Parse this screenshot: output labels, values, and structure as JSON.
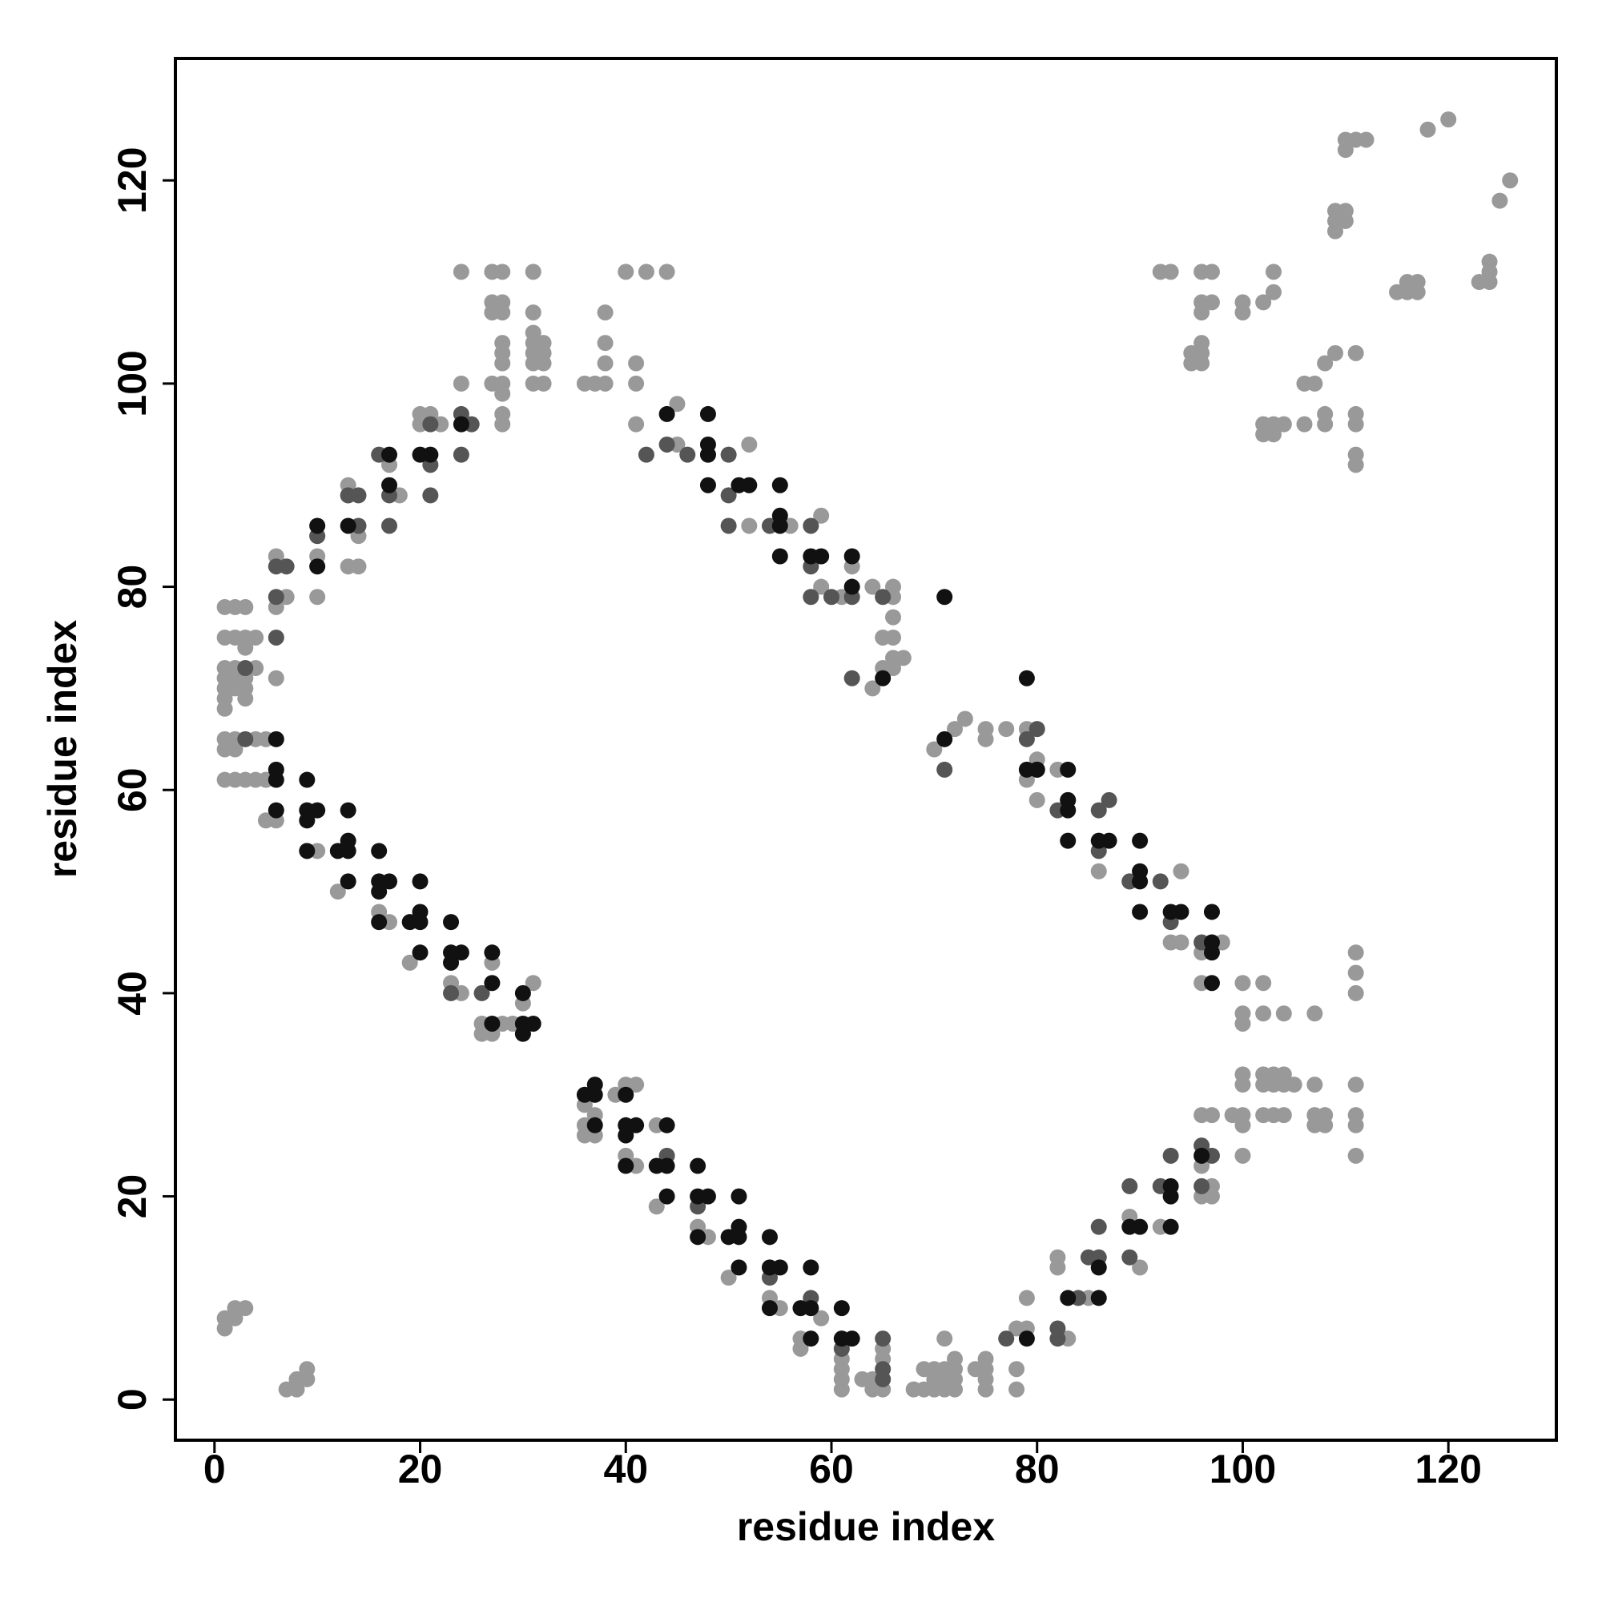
{
  "chart_data": {
    "type": "scatter",
    "xlabel": "residue index",
    "ylabel": "residue index",
    "xlim": [
      -3.8,
      130.5
    ],
    "ylim": [
      -4,
      132
    ],
    "xticks": [
      0,
      20,
      40,
      60,
      80,
      100,
      120
    ],
    "yticks": [
      0,
      20,
      40,
      60,
      80,
      100,
      120
    ],
    "series": [
      {
        "color": "#999999",
        "x": [
          1,
          2,
          3,
          1,
          2,
          3,
          4,
          1,
          1,
          1,
          1,
          1,
          2,
          2,
          2,
          3,
          3,
          3,
          4,
          3,
          1,
          2,
          4,
          5,
          1,
          2,
          1,
          2,
          3,
          4,
          5,
          6,
          6,
          7,
          6,
          5,
          6,
          10,
          10,
          10,
          13,
          13,
          13,
          14,
          14,
          17,
          18,
          20,
          20,
          21,
          22,
          24,
          24,
          27,
          28,
          27,
          28,
          27,
          28,
          27,
          28,
          28,
          28,
          28,
          28,
          28,
          28,
          31,
          31,
          31,
          31,
          31,
          31,
          31,
          32,
          32,
          32,
          32,
          36,
          37,
          38,
          38,
          38,
          38,
          40,
          42,
          44,
          41,
          41,
          41,
          45,
          45,
          48,
          52,
          52,
          56,
          59,
          59,
          61,
          62,
          64,
          66,
          66,
          66,
          65,
          66,
          66,
          67,
          65,
          66,
          64,
          70,
          72,
          73,
          75,
          75,
          77,
          79,
          79,
          80,
          80,
          82,
          86,
          89,
          93,
          94,
          94,
          96,
          98,
          96,
          10,
          12,
          16,
          17,
          19,
          23,
          24,
          27,
          26,
          26,
          27,
          29,
          30,
          30,
          31,
          28,
          36,
          36,
          36,
          37,
          37,
          39,
          40,
          41,
          40,
          41,
          43,
          43,
          47,
          48,
          50,
          54,
          55,
          57,
          57,
          59,
          61,
          61,
          61,
          61,
          63,
          64,
          64,
          65,
          65,
          65,
          65,
          68,
          69,
          69,
          70,
          70,
          70,
          71,
          71,
          71,
          71,
          72,
          72,
          72,
          72,
          74,
          75,
          75,
          75,
          75,
          78,
          78,
          78,
          79,
          79,
          82,
          82,
          83,
          85,
          89,
          90,
          92,
          96,
          97,
          96,
          97,
          97,
          96,
          100,
          100,
          100,
          100,
          100,
          100,
          99,
          100,
          100,
          102,
          102,
          102,
          102,
          102,
          103,
          103,
          103,
          104,
          104,
          104,
          104,
          105,
          107,
          107,
          107,
          107,
          108,
          108,
          111,
          111,
          111,
          111,
          111,
          111,
          111,
          1,
          1,
          2,
          2,
          3,
          7,
          8,
          8,
          9,
          9,
          92,
          93,
          96,
          97,
          96,
          97,
          96,
          96,
          95,
          95,
          96,
          96,
          100,
          100,
          102,
          103,
          103,
          102,
          102,
          103,
          103,
          104,
          106,
          107,
          106,
          108,
          108,
          108,
          109,
          109,
          109,
          109,
          110,
          110,
          111,
          111,
          111,
          111,
          111,
          110,
          110,
          111,
          112,
          115,
          116,
          116,
          117,
          117,
          118,
          120,
          123,
          124,
          124,
          124,
          125,
          126
        ],
        "values": [
          78,
          78,
          78,
          75,
          75,
          75,
          75,
          72,
          71,
          70,
          69,
          68,
          72,
          71,
          70,
          71,
          70,
          69,
          72,
          74,
          65,
          65,
          65,
          65,
          64,
          64,
          61,
          61,
          61,
          61,
          61,
          83,
          78,
          79,
          71,
          57,
          57,
          85,
          83,
          79,
          90,
          89,
          82,
          82,
          85,
          92,
          89,
          97,
          96,
          97,
          96,
          100,
          111,
          111,
          111,
          108,
          108,
          107,
          107,
          100,
          104,
          103,
          102,
          100,
          99,
          97,
          96,
          111,
          107,
          105,
          104,
          103,
          102,
          100,
          104,
          103,
          102,
          100,
          100,
          100,
          107,
          104,
          102,
          100,
          111,
          111,
          111,
          102,
          100,
          96,
          98,
          94,
          93,
          94,
          86,
          86,
          87,
          80,
          79,
          82,
          80,
          80,
          79,
          77,
          75,
          75,
          73,
          73,
          72,
          72,
          70,
          64,
          66,
          67,
          66,
          65,
          66,
          66,
          61,
          63,
          59,
          62,
          52,
          51,
          45,
          45,
          52,
          44,
          45,
          41,
          54,
          50,
          48,
          47,
          43,
          41,
          40,
          43,
          37,
          36,
          36,
          37,
          36,
          39,
          41,
          37,
          29,
          27,
          26,
          28,
          26,
          30,
          31,
          31,
          24,
          23,
          27,
          19,
          17,
          16,
          12,
          10,
          9,
          6,
          5,
          8,
          4,
          3,
          2,
          1,
          2,
          2,
          1,
          5,
          4,
          2,
          1,
          1,
          3,
          1,
          3,
          2,
          1,
          6,
          3,
          2,
          1,
          4,
          3,
          2,
          1,
          3,
          4,
          3,
          2,
          1,
          7,
          3,
          1,
          10,
          7,
          14,
          13,
          6,
          10,
          18,
          13,
          17,
          28,
          28,
          23,
          21,
          20,
          20,
          41,
          38,
          37,
          32,
          31,
          28,
          28,
          27,
          24,
          41,
          38,
          32,
          31,
          28,
          32,
          31,
          28,
          38,
          32,
          31,
          28,
          31,
          38,
          31,
          28,
          27,
          28,
          27,
          44,
          42,
          40,
          31,
          28,
          27,
          24,
          8,
          7,
          9,
          8,
          9,
          1,
          2,
          1,
          3,
          2,
          111,
          111,
          111,
          111,
          108,
          108,
          107,
          104,
          103,
          102,
          103,
          102,
          108,
          107,
          108,
          111,
          109,
          96,
          95,
          96,
          95,
          96,
          100,
          100,
          96,
          97,
          96,
          102,
          103,
          117,
          116,
          115,
          117,
          116,
          103,
          97,
          96,
          93,
          92,
          123,
          124,
          124,
          124,
          109,
          110,
          109,
          110,
          109,
          125,
          126,
          110,
          112,
          111,
          110,
          118,
          120
        ]
      },
      {
        "color": "#555555",
        "x": [
          3,
          6,
          6,
          6,
          7,
          10,
          13,
          14,
          14,
          16,
          17,
          17,
          21,
          21,
          21,
          24,
          24,
          25,
          42,
          44,
          46,
          50,
          50,
          50,
          54,
          58,
          58,
          58,
          60,
          62,
          62,
          65,
          79,
          80,
          80,
          82,
          83,
          86,
          86,
          87,
          89,
          92,
          93,
          96,
          71,
          3,
          23,
          26,
          44,
          47,
          54,
          58,
          61,
          65,
          65,
          65,
          77,
          82,
          82,
          84,
          85,
          86,
          86,
          89,
          89,
          92,
          93,
          96,
          96,
          97
        ],
        "values": [
          65,
          75,
          79,
          82,
          82,
          85,
          89,
          86,
          89,
          93,
          89,
          86,
          96,
          92,
          89,
          97,
          93,
          96,
          93,
          94,
          93,
          93,
          89,
          86,
          86,
          86,
          82,
          79,
          79,
          79,
          71,
          79,
          65,
          66,
          62,
          58,
          59,
          58,
          54,
          59,
          51,
          51,
          47,
          45,
          62,
          72,
          40,
          40,
          24,
          19,
          12,
          10,
          5,
          6,
          3,
          2,
          6,
          6,
          7,
          10,
          14,
          17,
          14,
          21,
          14,
          21,
          24,
          25,
          21,
          24
        ]
      },
      {
        "color": "#111111",
        "x": [
          6,
          6,
          6,
          6,
          9,
          9,
          9,
          9,
          10,
          10,
          10,
          12,
          13,
          13,
          13,
          13,
          13,
          16,
          16,
          16,
          16,
          17,
          17,
          17,
          19,
          20,
          20,
          20,
          20,
          20,
          21,
          23,
          23,
          23,
          24,
          24,
          27,
          27,
          27,
          30,
          30,
          30,
          31,
          36,
          37,
          37,
          37,
          40,
          40,
          40,
          40,
          41,
          43,
          44,
          44,
          44,
          47,
          47,
          47,
          48,
          50,
          51,
          51,
          51,
          51,
          54,
          54,
          54,
          55,
          57,
          58,
          58,
          58,
          61,
          61,
          62,
          44,
          48,
          48,
          48,
          48,
          51,
          52,
          55,
          55,
          55,
          55,
          58,
          59,
          62,
          62,
          65,
          71,
          71,
          79,
          79,
          80,
          83,
          83,
          83,
          83,
          86,
          87,
          90,
          90,
          90,
          90,
          93,
          94,
          97,
          97,
          97,
          97,
          79,
          83,
          86,
          86,
          89,
          90,
          93,
          93,
          93,
          96
        ],
        "values": [
          65,
          62,
          61,
          58,
          61,
          58,
          57,
          54,
          58,
          86,
          82,
          54,
          58,
          55,
          54,
          51,
          86,
          54,
          51,
          50,
          47,
          51,
          93,
          90,
          47,
          51,
          48,
          47,
          44,
          93,
          93,
          47,
          44,
          43,
          44,
          96,
          44,
          41,
          37,
          40,
          37,
          36,
          37,
          30,
          31,
          30,
          27,
          30,
          27,
          26,
          23,
          27,
          23,
          27,
          23,
          20,
          23,
          20,
          16,
          20,
          16,
          20,
          17,
          16,
          13,
          16,
          13,
          9,
          13,
          9,
          13,
          9,
          6,
          9,
          6,
          6,
          97,
          97,
          94,
          93,
          90,
          90,
          90,
          90,
          87,
          86,
          83,
          83,
          83,
          83,
          80,
          71,
          79,
          65,
          71,
          62,
          62,
          62,
          59,
          58,
          55,
          55,
          55,
          55,
          52,
          51,
          48,
          48,
          48,
          48,
          45,
          44,
          41,
          6,
          10,
          13,
          10,
          17,
          17,
          21,
          20,
          17,
          24
        ]
      }
    ]
  }
}
